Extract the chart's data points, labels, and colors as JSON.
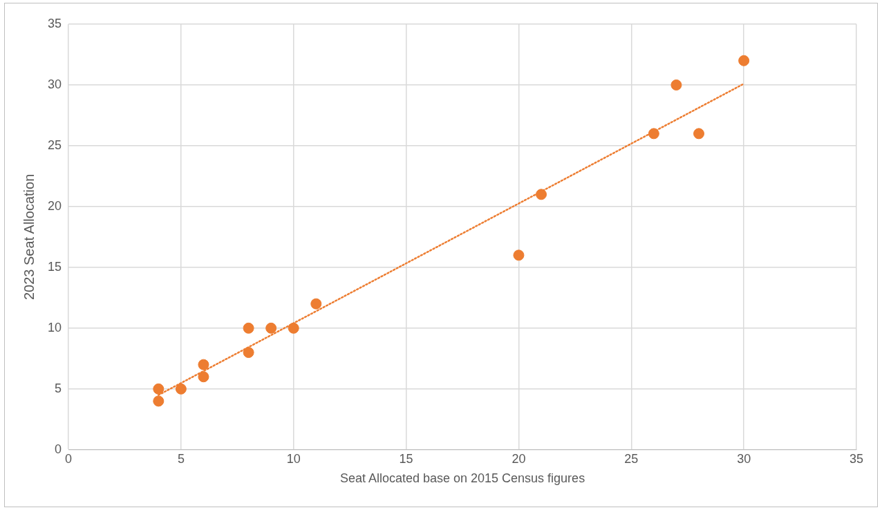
{
  "chart_data": {
    "type": "scatter",
    "xlabel": "Seat Allocated base on 2015 Census figures",
    "ylabel": "2023 Seat Allocation",
    "series": [
      {
        "type": "scatter",
        "color": "#ed7d31",
        "marker": "circle",
        "x": [
          4,
          4,
          5,
          6,
          6,
          8,
          8,
          9,
          10,
          11,
          20,
          21,
          26,
          27,
          28,
          30
        ],
        "values": [
          5,
          4,
          5,
          7,
          6,
          10,
          8,
          10,
          10,
          12,
          16,
          21,
          26,
          30,
          26,
          32
        ]
      },
      {
        "type": "line",
        "color": "#ed7d31",
        "marker": "none",
        "line_style": "dotted",
        "x": [
          4,
          30
        ],
        "values": [
          4.5,
          30.1
        ]
      }
    ],
    "xlim": [
      0,
      35
    ],
    "xticks": [
      0,
      5,
      10,
      15,
      20,
      25,
      30,
      35
    ],
    "ylim": [
      0,
      35
    ],
    "yticks": [
      0,
      5,
      10,
      15,
      20,
      25,
      30,
      35
    ],
    "grid": true,
    "legend": false
  }
}
